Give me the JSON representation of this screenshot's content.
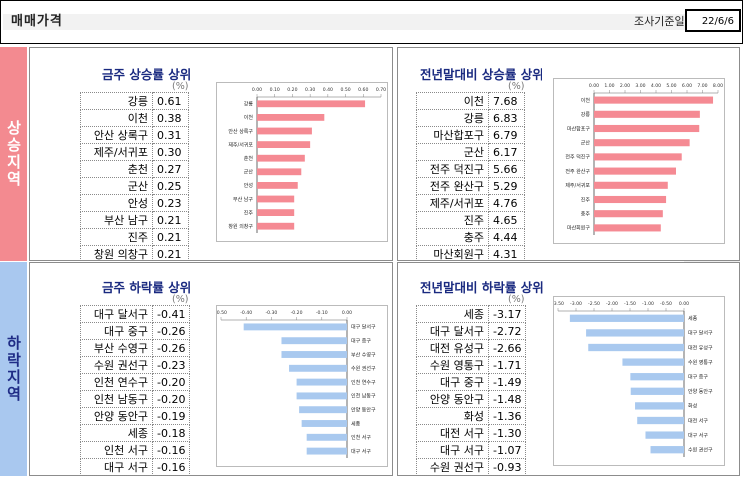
{
  "header": {
    "title": "매매가격",
    "date_label": "조사기준일",
    "date_value": "22/6/6"
  },
  "side_labels": {
    "rising": "상승지역",
    "falling": "하락지역"
  },
  "colors": {
    "rise_bar": "#f58a93",
    "fall_bar": "#a9c9ef",
    "rise_side": "#f38a90",
    "fall_side": "#a9c8ef"
  },
  "chart_data": [
    {
      "type": "bar",
      "title": "금주 상승률 상위",
      "unit": "(%)",
      "categories": [
        "강릉",
        "이천",
        "안산 상록구",
        "제주/서귀포",
        "춘천",
        "군산",
        "안성",
        "부산 남구",
        "진주",
        "창원 의창구"
      ],
      "chart_labels": [
        "강릉",
        "이천",
        "안산 상록구",
        "제주/서귀포",
        "춘천",
        "군산",
        "안성",
        "부산 남구",
        "진주",
        "창원 의창구"
      ],
      "values": [
        0.61,
        0.38,
        0.31,
        0.3,
        0.27,
        0.25,
        0.23,
        0.21,
        0.21,
        0.21
      ],
      "value_labels": [
        "0.61",
        "0.38",
        "0.31",
        "0.30",
        "0.27",
        "0.25",
        "0.23",
        "0.21",
        "0.21",
        "0.21"
      ],
      "xlim": [
        0,
        0.7
      ],
      "ticks": [
        "0.00",
        "0.10",
        "0.20",
        "0.30",
        "0.40",
        "0.50",
        "0.60",
        "0.70"
      ]
    },
    {
      "type": "bar",
      "title": "전년말대비 상승률 상위",
      "unit": "(%)",
      "categories": [
        "이천",
        "강릉",
        "마산합포구",
        "군산",
        "전주 덕진구",
        "전주 완산구",
        "제주/서귀포",
        "진주",
        "충주",
        "마산회원구"
      ],
      "chart_labels": [
        "이천",
        "강릉",
        "마산합포구",
        "군산",
        "전주 덕진구",
        "전주 완산구",
        "제주/서귀포",
        "진주",
        "충주",
        "마산회원구"
      ],
      "values": [
        7.68,
        6.83,
        6.79,
        6.17,
        5.66,
        5.29,
        4.76,
        4.65,
        4.44,
        4.31
      ],
      "value_labels": [
        "7.68",
        "6.83",
        "6.79",
        "6.17",
        "5.66",
        "5.29",
        "4.76",
        "4.65",
        "4.44",
        "4.31"
      ],
      "xlim": [
        0,
        8
      ],
      "ticks": [
        "0.00",
        "1.00",
        "2.00",
        "3.00",
        "4.00",
        "5.00",
        "6.00",
        "7.00",
        "8.00"
      ]
    },
    {
      "type": "bar",
      "title": "금주 하락률 상위",
      "unit": "(%)",
      "categories": [
        "대구 달서구",
        "대구 중구",
        "부산 수영구",
        "수원 권선구",
        "인천 연수구",
        "인천 남동구",
        "안양 동안구",
        "세종",
        "인천 서구",
        "대구 서구"
      ],
      "chart_labels": [
        "대구 달서구",
        "대구 중구",
        "부산 수영구",
        "수원 권선구",
        "인천 연수구",
        "인천 남동구",
        "안양 동안구",
        "세종",
        "인천 서구",
        "대구 서구"
      ],
      "values": [
        -0.41,
        -0.26,
        -0.26,
        -0.23,
        -0.2,
        -0.2,
        -0.19,
        -0.18,
        -0.16,
        -0.16
      ],
      "value_labels": [
        "-0.41",
        "-0.26",
        "-0.26",
        "-0.23",
        "-0.20",
        "-0.20",
        "-0.19",
        "-0.18",
        "-0.16",
        "-0.16"
      ],
      "xlim": [
        -0.5,
        0
      ],
      "ticks": [
        "-0.50",
        "-0.40",
        "-0.30",
        "-0.20",
        "-0.10",
        "0.00"
      ]
    },
    {
      "type": "bar",
      "title": "전년말대비 하락률 상위",
      "unit": "(%)",
      "categories": [
        "세종",
        "대구 달서구",
        "대전 유성구",
        "수원 영통구",
        "대구 중구",
        "안양 동안구",
        "화성",
        "대전 서구",
        "대구 서구",
        "수원 권선구"
      ],
      "chart_labels": [
        "세종",
        "대구 달서구",
        "대전 유성구",
        "수원 영통구",
        "대구 중구",
        "안양 동안구",
        "화성",
        "대전 서구",
        "대구 서구",
        "수원 권선구"
      ],
      "values": [
        -3.17,
        -2.72,
        -2.66,
        -1.71,
        -1.49,
        -1.48,
        -1.36,
        -1.3,
        -1.07,
        -0.93
      ],
      "value_labels": [
        "-3.17",
        "-2.72",
        "-2.66",
        "-1.71",
        "-1.49",
        "-1.48",
        "-1.36",
        "-1.30",
        "-1.07",
        "-0.93"
      ],
      "xlim": [
        -3.5,
        0
      ],
      "ticks": [
        "-3.50",
        "-3.00",
        "-2.50",
        "-2.00",
        "-1.50",
        "-1.00",
        "-0.50",
        "0.00"
      ]
    }
  ]
}
